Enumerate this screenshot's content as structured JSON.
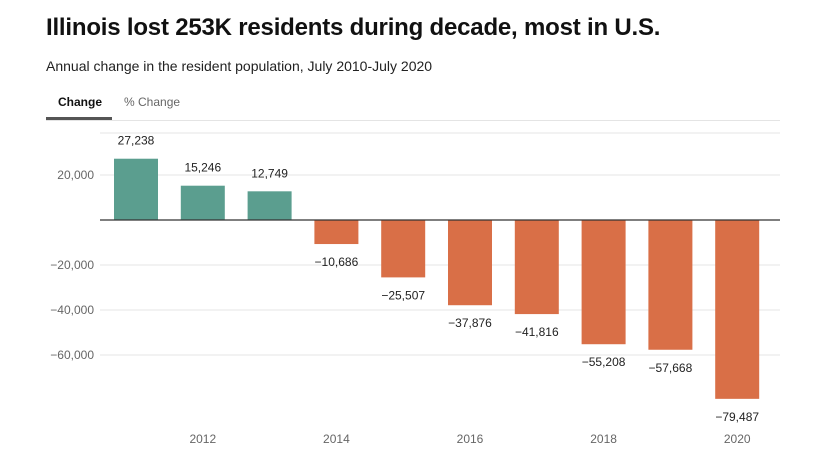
{
  "title": "Illinois lost 253K residents during decade, most in U.S.",
  "subtitle": "Annual change in the resident population, July 2010-July 2020",
  "tabs": [
    {
      "label": "Change",
      "active": true
    },
    {
      "label": "% Change",
      "active": false
    }
  ],
  "colors": {
    "positive": "#5b9e8f",
    "negative": "#d96f47",
    "zero_line": "#333333",
    "grid": "#e6e6e6"
  },
  "chart_data": {
    "type": "bar",
    "categories": [
      "2011",
      "2012",
      "2013",
      "2014",
      "2015",
      "2016",
      "2017",
      "2018",
      "2019",
      "2020"
    ],
    "values": [
      27238,
      15246,
      12749,
      -10686,
      -25507,
      -37876,
      -41816,
      -55208,
      -57668,
      -79487
    ],
    "value_labels": [
      "27,238",
      "15,246",
      "12,749",
      "−10,686",
      "−25,507",
      "−37,876",
      "−41,816",
      "−55,208",
      "−57,668",
      "−79,487"
    ],
    "x_tick_labels": [
      {
        "category": "2012",
        "label": "2012"
      },
      {
        "category": "2014",
        "label": "2014"
      },
      {
        "category": "2016",
        "label": "2016"
      },
      {
        "category": "2018",
        "label": "2018"
      },
      {
        "category": "2020",
        "label": "2020"
      }
    ],
    "y_ticks": [
      {
        "value": 20000,
        "label": "20,000"
      },
      {
        "value": -20000,
        "label": "−20,000"
      },
      {
        "value": -40000,
        "label": "−40,000"
      },
      {
        "value": -60000,
        "label": "−60,000"
      }
    ],
    "ylim": [
      -80000,
      30000
    ],
    "grid": true,
    "xlabel": "",
    "ylabel": ""
  }
}
